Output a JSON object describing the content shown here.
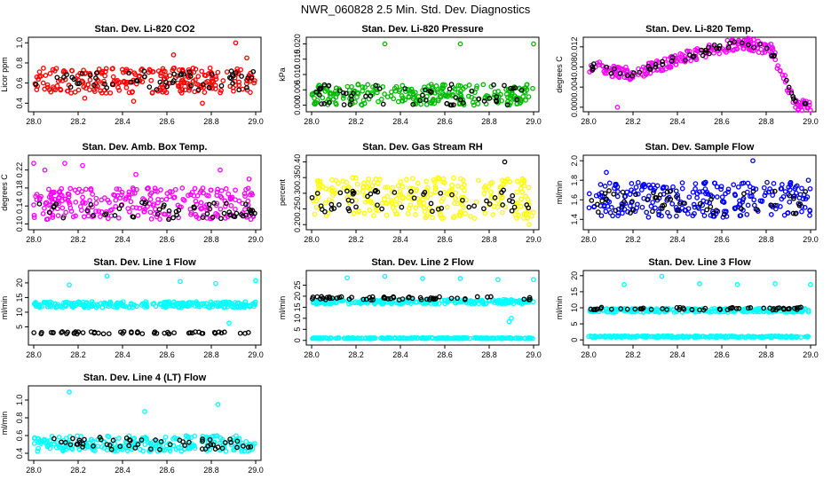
{
  "figure_title": "NWR_060828  2.5 Min. Std. Dev. Diagnostics",
  "chart_data": [
    {
      "id": "p1",
      "type": "scatter",
      "title": "Stan. Dev. Li-820 CO2",
      "ylabel": "Licor ppm",
      "color": "#ff0000",
      "xlim": [
        28.0,
        29.0
      ],
      "ylim": [
        0.35,
        1.02
      ],
      "xticks": [
        "28.0",
        "28.2",
        "28.4",
        "28.6",
        "28.8",
        "29.0"
      ],
      "yticks": [
        "0.4",
        "0.6",
        "0.8",
        "1.0"
      ],
      "series": [
        {
          "name": "colored",
          "band": [
            0.5,
            0.75
          ],
          "outliers": [
            [
              28.23,
              0.45
            ],
            [
              28.45,
              0.42
            ],
            [
              28.63,
              0.88
            ],
            [
              28.76,
              0.4
            ],
            [
              28.91,
              1.0
            ],
            [
              28.96,
              0.85
            ]
          ]
        },
        {
          "name": "black",
          "band": [
            0.53,
            0.72
          ],
          "outliers": []
        }
      ]
    },
    {
      "id": "p2",
      "type": "scatter",
      "title": "Stan. Dev. Li-820 Pressure",
      "ylabel": "kPa",
      "color": "#00bb00",
      "xlim": [
        28.0,
        29.0
      ],
      "ylim": [
        -0.001,
        0.021
      ],
      "xticks": [
        "28.0",
        "28.2",
        "28.4",
        "28.6",
        "28.8",
        "29.0"
      ],
      "yticks": [
        "0.000",
        "0.005",
        "0.010",
        "0.015",
        "0.020"
      ],
      "series": [
        {
          "name": "colored",
          "band": [
            0.0,
            0.007
          ],
          "outliers": [
            [
              28.33,
              0.02
            ],
            [
              28.67,
              0.02
            ],
            [
              29.0,
              0.02
            ]
          ]
        },
        {
          "name": "black",
          "band": [
            0.0,
            0.007
          ],
          "outliers": []
        }
      ]
    },
    {
      "id": "p3",
      "type": "scatter",
      "title": "Stan. Dev. Li-820 Temp.",
      "ylabel": "degrees C",
      "color": "#ff00ff",
      "xlim": [
        28.0,
        29.0
      ],
      "ylim": [
        -0.0002,
        0.0132
      ],
      "xticks": [
        "28.0",
        "28.2",
        "28.4",
        "28.6",
        "28.8",
        "29.0"
      ],
      "yticks": [
        "0.000",
        "0.004",
        "0.008",
        "0.012"
      ],
      "curve": [
        [
          28.0,
          0.0082
        ],
        [
          28.2,
          0.0065
        ],
        [
          28.4,
          0.0095
        ],
        [
          28.55,
          0.0115
        ],
        [
          28.7,
          0.0128
        ],
        [
          28.82,
          0.0115
        ],
        [
          28.88,
          0.006
        ],
        [
          28.93,
          0.0005
        ],
        [
          29.0,
          0.0002
        ]
      ],
      "series": [
        {
          "name": "colored",
          "spread": 0.0012,
          "outliers": [
            [
              28.13,
              0.0
            ]
          ]
        },
        {
          "name": "black",
          "spread": 0.0008,
          "outliers": []
        }
      ]
    },
    {
      "id": "p4",
      "type": "scatter",
      "title": "Stan. Dev. Amb. Box Temp.",
      "ylabel": "degrees C",
      "color": "#ff00ff",
      "xlim": [
        28.0,
        29.0
      ],
      "ylim": [
        0.095,
        0.245
      ],
      "xticks": [
        "28.0",
        "28.2",
        "28.4",
        "28.6",
        "28.8",
        "29.0"
      ],
      "yticks": [
        "0.10",
        "0.14",
        "0.18",
        "0.22"
      ],
      "series": [
        {
          "name": "colored",
          "band": [
            0.11,
            0.18
          ],
          "outliers": [
            [
              28.0,
              0.235
            ],
            [
              28.14,
              0.235
            ],
            [
              28.22,
              0.23
            ],
            [
              28.05,
              0.22
            ],
            [
              28.46,
              0.21
            ],
            [
              28.84,
              0.22
            ],
            [
              28.97,
              0.2
            ]
          ]
        },
        {
          "name": "black",
          "band": [
            0.11,
            0.15
          ],
          "outliers": []
        }
      ]
    },
    {
      "id": "p5",
      "type": "scatter",
      "title": "Stan. Dev. Gas Stream RH",
      "ylabel": "percent",
      "color": "#ffff00",
      "xlim": [
        28.0,
        29.0
      ],
      "ylim": [
        0.195,
        0.41
      ],
      "xticks": [
        "28.0",
        "28.2",
        "28.4",
        "28.6",
        "28.8",
        "29.0"
      ],
      "yticks": [
        "0.20",
        "0.25",
        "0.30",
        "0.35",
        "0.40"
      ],
      "series": [
        {
          "name": "colored",
          "band": [
            0.22,
            0.35
          ],
          "outliers": [
            [
              28.03,
              0.34
            ],
            [
              28.98,
              0.2
            ],
            [
              28.57,
              0.35
            ]
          ]
        },
        {
          "name": "black",
          "band": [
            0.24,
            0.31
          ],
          "outliers": [
            [
              28.87,
              0.4
            ]
          ]
        }
      ]
    },
    {
      "id": "p6",
      "type": "scatter",
      "title": "Stan. Dev. Sample Flow",
      "ylabel": "ml/min",
      "color": "#0000ff",
      "xlim": [
        28.0,
        29.0
      ],
      "ylim": [
        1.33,
        2.02
      ],
      "xticks": [
        "28.0",
        "28.2",
        "28.4",
        "28.6",
        "28.8",
        "29.0"
      ],
      "yticks": [
        "1.4",
        "1.6",
        "1.8",
        "2.0"
      ],
      "series": [
        {
          "name": "colored",
          "band": [
            1.42,
            1.78
          ],
          "outliers": [
            [
              28.08,
              1.88
            ],
            [
              28.74,
              2.0
            ],
            [
              28.99,
              1.8
            ]
          ]
        },
        {
          "name": "black",
          "band": [
            1.45,
            1.7
          ],
          "outliers": []
        }
      ]
    },
    {
      "id": "p7",
      "type": "scatter",
      "title": "Stan. Dev. Line 1 Flow",
      "ylabel": "ml/min",
      "color": "#00ffff",
      "xlim": [
        28.0,
        29.0
      ],
      "ylim": [
        0,
        23
      ],
      "xticks": [
        "28.0",
        "28.2",
        "28.4",
        "28.6",
        "28.8",
        "29.0"
      ],
      "yticks": [
        "5",
        "10",
        "15",
        "20"
      ],
      "series": [
        {
          "name": "colored",
          "band": [
            11.6,
            13.6
          ],
          "outliers": [
            [
              28.16,
              19.3
            ],
            [
              28.33,
              22.3
            ],
            [
              28.66,
              20.5
            ],
            [
              28.82,
              19.8
            ],
            [
              28.88,
              6.3
            ],
            [
              29.0,
              20.8
            ]
          ]
        },
        {
          "name": "black",
          "band": [
            2.6,
            3.4
          ],
          "outliers": []
        }
      ]
    },
    {
      "id": "p8",
      "type": "scatter",
      "title": "Stan. Dev. Line 2 Flow",
      "ylabel": "ml/min",
      "color": "#00ffff",
      "xlim": [
        28.0,
        29.0
      ],
      "ylim": [
        -0.5,
        30
      ],
      "xticks": [
        "28.0",
        "28.2",
        "28.4",
        "28.6",
        "28.8",
        "29.0"
      ],
      "yticks": [
        "0",
        "5",
        "10",
        "15",
        "20",
        "25"
      ],
      "series": [
        {
          "name": "colored",
          "band": [
            16.5,
            18.5
          ],
          "outliers": [
            [
              28.16,
              28.3
            ],
            [
              28.33,
              29.0
            ],
            [
              28.5,
              28.0
            ],
            [
              28.67,
              28.0
            ],
            [
              28.84,
              27.5
            ],
            [
              29.0,
              27.5
            ],
            [
              28.9,
              10.0
            ],
            [
              28.89,
              8.5
            ]
          ]
        },
        {
          "name": "colored_low",
          "band": [
            0.8,
            1.2
          ],
          "outliers": []
        },
        {
          "name": "black",
          "band": [
            18.3,
            19.8
          ],
          "outliers": []
        }
      ]
    },
    {
      "id": "p9",
      "type": "scatter",
      "title": "Stan. Dev. Line 3 Flow",
      "ylabel": "ml/min",
      "color": "#00ffff",
      "xlim": [
        28.0,
        29.0
      ],
      "ylim": [
        -0.5,
        20.5
      ],
      "xticks": [
        "28.0",
        "28.2",
        "28.4",
        "28.6",
        "28.8",
        "29.0"
      ],
      "yticks": [
        "0",
        "5",
        "10",
        "15",
        "20"
      ],
      "series": [
        {
          "name": "colored",
          "band": [
            8.6,
            9.8
          ],
          "outliers": [
            [
              28.16,
              17.2
            ],
            [
              28.33,
              19.8
            ],
            [
              28.5,
              17.5
            ],
            [
              28.67,
              17.2
            ],
            [
              28.84,
              17.5
            ],
            [
              29.0,
              17.2
            ]
          ]
        },
        {
          "name": "colored_low",
          "band": [
            0.8,
            1.2
          ],
          "outliers": []
        },
        {
          "name": "black",
          "band": [
            9.3,
            10.2
          ],
          "outliers": []
        }
      ]
    },
    {
      "id": "p10",
      "type": "scatter",
      "title": "Stan. Dev. Line 4 (LT) Flow",
      "ylabel": "ml/min",
      "color": "#00ffff",
      "xlim": [
        28.0,
        29.0
      ],
      "ylim": [
        0.36,
        1.12
      ],
      "xticks": [
        "28.0",
        "28.2",
        "28.4",
        "28.6",
        "28.8",
        "29.0"
      ],
      "yticks": [
        "0.4",
        "0.6",
        "0.8",
        "1.0"
      ],
      "series": [
        {
          "name": "colored",
          "band": [
            0.42,
            0.6
          ],
          "outliers": [
            [
              28.16,
              1.09
            ],
            [
              28.5,
              0.87
            ],
            [
              28.83,
              0.95
            ]
          ]
        },
        {
          "name": "black",
          "band": [
            0.44,
            0.58
          ],
          "outliers": []
        }
      ]
    }
  ]
}
